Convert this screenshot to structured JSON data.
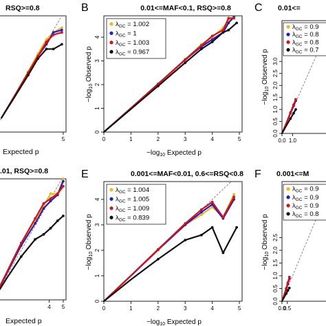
{
  "colors": {
    "series": [
      "#f2b61c",
      "#1f1fd0",
      "#d4141a",
      "#111111"
    ],
    "diagonal": "#8a8a8a",
    "axis": "#222222"
  },
  "chart_data": [
    {
      "panel": "A",
      "type": "scatter",
      "title": "RSQ>=0.8",
      "xlabel_main": "Expected p",
      "ylabel": "",
      "xlim": [
        0,
        5.2
      ],
      "ylim": [
        0,
        4.9
      ],
      "xticks": [
        "5"
      ],
      "yticks": [],
      "legend_entries": [],
      "series": [
        {
          "color_index": 0,
          "points": [
            [
              0.6,
              0.6
            ],
            [
              1.5,
              1.5
            ],
            [
              2.5,
              2.55
            ],
            [
              3.2,
              3.3
            ],
            [
              3.8,
              3.9
            ],
            [
              4.3,
              4.2
            ],
            [
              4.9,
              4.4
            ]
          ]
        },
        {
          "color_index": 1,
          "points": [
            [
              0.6,
              0.6
            ],
            [
              1.5,
              1.5
            ],
            [
              2.5,
              2.5
            ],
            [
              3.2,
              3.2
            ],
            [
              3.8,
              3.7
            ],
            [
              4.3,
              4.2
            ],
            [
              4.9,
              4.3
            ]
          ]
        },
        {
          "color_index": 2,
          "points": [
            [
              0.6,
              0.6
            ],
            [
              1.5,
              1.5
            ],
            [
              2.5,
              2.5
            ],
            [
              3.2,
              3.2
            ],
            [
              3.8,
              3.8
            ],
            [
              4.3,
              4.1
            ],
            [
              4.9,
              4.2
            ]
          ]
        },
        {
          "color_index": 3,
          "points": [
            [
              0.6,
              0.6
            ],
            [
              1.5,
              1.45
            ],
            [
              2.5,
              2.4
            ],
            [
              3.2,
              3.1
            ],
            [
              3.8,
              3.5
            ],
            [
              4.3,
              3.5
            ],
            [
              4.9,
              3.7
            ]
          ]
        }
      ]
    },
    {
      "panel": "B",
      "type": "scatter",
      "title": "0.01<=MAF<0.1, RSQ>=0.8",
      "xlabel_main": "Expected p",
      "ylabel": "Observed p",
      "xlim": [
        0,
        5.1
      ],
      "ylim": [
        0,
        4.9
      ],
      "xticks": [
        "0",
        "1",
        "2",
        "3",
        "4",
        "5"
      ],
      "yticks": [
        "0",
        "1",
        "2",
        "3",
        "4"
      ],
      "legend_entries": [
        "1.002",
        "1",
        "1.003",
        "0.967"
      ],
      "series": [
        {
          "color_index": 0,
          "points": [
            [
              0,
              0
            ],
            [
              1,
              1.01
            ],
            [
              2,
              2.02
            ],
            [
              3,
              3.05
            ],
            [
              3.6,
              3.7
            ],
            [
              4.0,
              4.0
            ],
            [
              4.4,
              4.4
            ],
            [
              4.6,
              4.7
            ],
            [
              4.8,
              4.85
            ]
          ]
        },
        {
          "color_index": 1,
          "points": [
            [
              0,
              0
            ],
            [
              1,
              1.01
            ],
            [
              2,
              2.03
            ],
            [
              3,
              3.05
            ],
            [
              3.6,
              3.6
            ],
            [
              4.0,
              3.9
            ],
            [
              4.4,
              4.2
            ],
            [
              4.6,
              4.6
            ],
            [
              4.8,
              4.85
            ]
          ]
        },
        {
          "color_index": 2,
          "points": [
            [
              0,
              0
            ],
            [
              1,
              1.01
            ],
            [
              2,
              2.02
            ],
            [
              3,
              3.06
            ],
            [
              3.6,
              3.65
            ],
            [
              4.0,
              4.05
            ],
            [
              4.4,
              4.3
            ],
            [
              4.6,
              4.8
            ],
            [
              4.8,
              4.8
            ]
          ]
        },
        {
          "color_index": 3,
          "points": [
            [
              0,
              0
            ],
            [
              1,
              0.97
            ],
            [
              2,
              1.94
            ],
            [
              3,
              2.92
            ],
            [
              3.6,
              3.5
            ],
            [
              4.0,
              3.8
            ],
            [
              4.4,
              4.2
            ],
            [
              4.6,
              4.3
            ],
            [
              4.9,
              4.6
            ]
          ]
        }
      ]
    },
    {
      "panel": "C",
      "type": "scatter",
      "title": "0.01<=",
      "xlabel_main": "",
      "ylabel": "Observed p",
      "xlim": [
        0,
        5.2
      ],
      "ylim": [
        0,
        4.7
      ],
      "xticks": [
        "0.0",
        "1.0"
      ],
      "yticks": [
        "0.0",
        "0.5",
        "1.0",
        "1.5",
        "2.0",
        "2.5",
        "3.0"
      ],
      "legend_entries": [
        "0.9",
        "0.8",
        "0.8",
        "0.7"
      ],
      "series": [
        {
          "color_index": 0,
          "points": [
            [
              0,
              0
            ],
            [
              0.4,
              0.42
            ],
            [
              0.8,
              0.86
            ],
            [
              1.1,
              1.18
            ],
            [
              1.3,
              1.4
            ]
          ]
        },
        {
          "color_index": 1,
          "points": [
            [
              0,
              0
            ],
            [
              0.4,
              0.41
            ],
            [
              0.8,
              0.84
            ],
            [
              1.1,
              1.15
            ],
            [
              1.3,
              1.36
            ]
          ]
        },
        {
          "color_index": 2,
          "points": [
            [
              0,
              0
            ],
            [
              0.4,
              0.42
            ],
            [
              0.8,
              0.87
            ],
            [
              1.1,
              1.2
            ],
            [
              1.3,
              1.42
            ]
          ]
        },
        {
          "color_index": 3,
          "points": [
            [
              0,
              0
            ],
            [
              0.4,
              0.32
            ],
            [
              0.8,
              0.62
            ],
            [
              1.1,
              0.84
            ],
            [
              1.3,
              1.0
            ]
          ]
        }
      ]
    },
    {
      "panel": "D",
      "type": "scatter",
      "title": ".01, RSQ>=0.8",
      "xlabel_main": "Expected p",
      "ylabel": "",
      "xlim": [
        0,
        5.2
      ],
      "ylim": [
        0,
        4.9
      ],
      "xticks": [
        "4",
        "5"
      ],
      "yticks": [],
      "legend_entries": [],
      "series": [
        {
          "color_index": 0,
          "points": [
            [
              0,
              0
            ],
            [
              1,
              1.15
            ],
            [
              2,
              2.3
            ],
            [
              3,
              3.25
            ],
            [
              3.6,
              3.8
            ],
            [
              4.1,
              4.3
            ],
            [
              4.6,
              4.3
            ],
            [
              5.0,
              4.9
            ]
          ]
        },
        {
          "color_index": 1,
          "points": [
            [
              0,
              0
            ],
            [
              1,
              1.1
            ],
            [
              2,
              2.2
            ],
            [
              3,
              3.1
            ],
            [
              3.6,
              3.7
            ],
            [
              4.1,
              4.0
            ],
            [
              4.6,
              4.25
            ],
            [
              5.0,
              4.8
            ]
          ]
        },
        {
          "color_index": 2,
          "points": [
            [
              0,
              0
            ],
            [
              1,
              1.15
            ],
            [
              2,
              2.3
            ],
            [
              3,
              3.3
            ],
            [
              3.6,
              3.9
            ],
            [
              4.1,
              4.1
            ],
            [
              4.6,
              4.3
            ],
            [
              5.0,
              4.6
            ]
          ]
        },
        {
          "color_index": 3,
          "points": [
            [
              0,
              0
            ],
            [
              1,
              0.9
            ],
            [
              2,
              1.75
            ],
            [
              3,
              2.45
            ],
            [
              3.6,
              2.65
            ],
            [
              4.1,
              2.9
            ],
            [
              4.6,
              3.2
            ],
            [
              5.0,
              3.4
            ]
          ]
        }
      ]
    },
    {
      "panel": "E",
      "type": "scatter",
      "title": "0.001<=MAF<0.01, 0.6<=RSQ<0.8",
      "xlabel_main": "Expected p",
      "ylabel": "Observed p",
      "xlim": [
        0,
        5.1
      ],
      "ylim": [
        0,
        4.7
      ],
      "xticks": [
        "0",
        "1",
        "2",
        "3",
        "4",
        "5"
      ],
      "yticks": [
        "0",
        "1",
        "2",
        "3",
        "4"
      ],
      "legend_entries": [
        "1.004",
        "1.005",
        "1.009",
        "0.839"
      ],
      "series": [
        {
          "color_index": 0,
          "points": [
            [
              0,
              0
            ],
            [
              1,
              1.0
            ],
            [
              2,
              2.01
            ],
            [
              3,
              3.0
            ],
            [
              3.6,
              3.4
            ],
            [
              4.0,
              3.7
            ],
            [
              4.4,
              3.3
            ],
            [
              4.8,
              4.2
            ]
          ]
        },
        {
          "color_index": 1,
          "points": [
            [
              0,
              0
            ],
            [
              1,
              1.0
            ],
            [
              2,
              2.02
            ],
            [
              3,
              3.0
            ],
            [
              3.6,
              3.5
            ],
            [
              4.0,
              3.8
            ],
            [
              4.4,
              3.25
            ],
            [
              4.8,
              4.0
            ]
          ]
        },
        {
          "color_index": 2,
          "points": [
            [
              0,
              0
            ],
            [
              1,
              1.01
            ],
            [
              2,
              2.04
            ],
            [
              3,
              3.05
            ],
            [
              3.6,
              3.6
            ],
            [
              4.0,
              3.9
            ],
            [
              4.4,
              3.3
            ],
            [
              4.8,
              4.1
            ]
          ]
        },
        {
          "color_index": 3,
          "points": [
            [
              0,
              0
            ],
            [
              1,
              0.85
            ],
            [
              2,
              1.65
            ],
            [
              3,
              2.4
            ],
            [
              3.6,
              2.6
            ],
            [
              4.0,
              2.9
            ],
            [
              4.4,
              1.9
            ],
            [
              4.9,
              2.9
            ]
          ]
        }
      ]
    },
    {
      "panel": "F",
      "type": "scatter",
      "title": "0.001<=M",
      "xlabel_main": "",
      "ylabel": "Observed p",
      "xlim": [
        0,
        5.2
      ],
      "ylim": [
        0,
        4.7
      ],
      "xticks": [
        "0.0",
        "0.5"
      ],
      "yticks": [
        "0.0",
        "0.5",
        "1.0",
        "1.5",
        "2.0",
        "2.5"
      ],
      "legend_entries": [
        "0.9",
        "0.9",
        "0.9",
        "0.8"
      ],
      "series": [
        {
          "color_index": 0,
          "points": [
            [
              0,
              0
            ],
            [
              0.2,
              0.25
            ],
            [
              0.4,
              0.5
            ],
            [
              0.55,
              0.72
            ],
            [
              0.7,
              0.92
            ]
          ]
        },
        {
          "color_index": 1,
          "points": [
            [
              0,
              0
            ],
            [
              0.2,
              0.24
            ],
            [
              0.4,
              0.48
            ],
            [
              0.55,
              0.68
            ],
            [
              0.7,
              0.88
            ]
          ]
        },
        {
          "color_index": 2,
          "points": [
            [
              0,
              0
            ],
            [
              0.2,
              0.25
            ],
            [
              0.4,
              0.51
            ],
            [
              0.55,
              0.73
            ],
            [
              0.7,
              0.95
            ]
          ]
        },
        {
          "color_index": 3,
          "points": [
            [
              0,
              0
            ],
            [
              0.2,
              0.15
            ],
            [
              0.4,
              0.3
            ],
            [
              0.55,
              0.42
            ],
            [
              0.7,
              0.52
            ]
          ]
        }
      ]
    }
  ]
}
